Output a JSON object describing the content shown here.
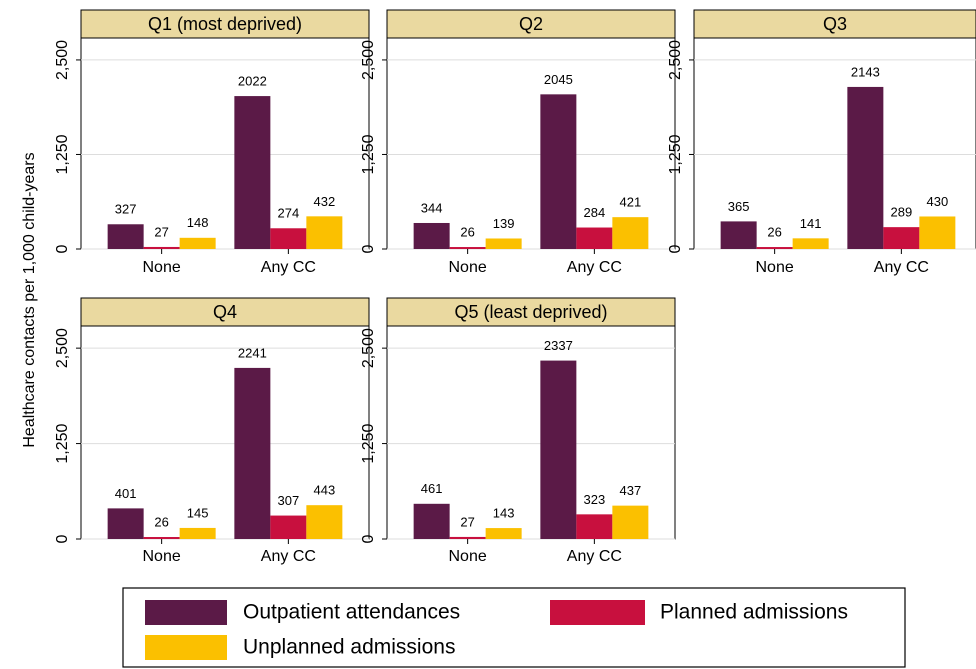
{
  "chart_data": {
    "type": "bar",
    "ylabel": "Healthcare contacts per 1,000 child-years",
    "ylim": [
      0,
      2790
    ],
    "yticks": [
      0,
      {
        "value": 1250,
        "label": "1,250"
      },
      {
        "value": 2500,
        "label": "2,500"
      }
    ],
    "grid": true,
    "categories": [
      "None",
      "Any CC"
    ],
    "series": [
      {
        "name": "Outpatient attendances",
        "color": "#5b1a47"
      },
      {
        "name": "Planned admissions",
        "color": "#c8103e"
      },
      {
        "name": "Unplanned admissions",
        "color": "#fbc000"
      }
    ],
    "panels": [
      {
        "title": "Q1 (most deprived)",
        "series": [
          {
            "values": [
              327,
              2022
            ]
          },
          {
            "values": [
              27,
              274
            ]
          },
          {
            "values": [
              148,
              432
            ]
          }
        ]
      },
      {
        "title": "Q2",
        "series": [
          {
            "values": [
              344,
              2045
            ]
          },
          {
            "values": [
              26,
              284
            ]
          },
          {
            "values": [
              139,
              421
            ]
          }
        ]
      },
      {
        "title": "Q3",
        "series": [
          {
            "values": [
              365,
              2143
            ]
          },
          {
            "values": [
              26,
              289
            ]
          },
          {
            "values": [
              141,
              430
            ]
          }
        ]
      },
      {
        "title": "Q4",
        "series": [
          {
            "values": [
              401,
              2241
            ]
          },
          {
            "values": [
              26,
              307
            ]
          },
          {
            "values": [
              145,
              443
            ]
          }
        ]
      },
      {
        "title": "Q5 (least deprived)",
        "series": [
          {
            "values": [
              461,
              2337
            ]
          },
          {
            "values": [
              27,
              323
            ]
          },
          {
            "values": [
              143,
              437
            ]
          }
        ]
      }
    ]
  }
}
